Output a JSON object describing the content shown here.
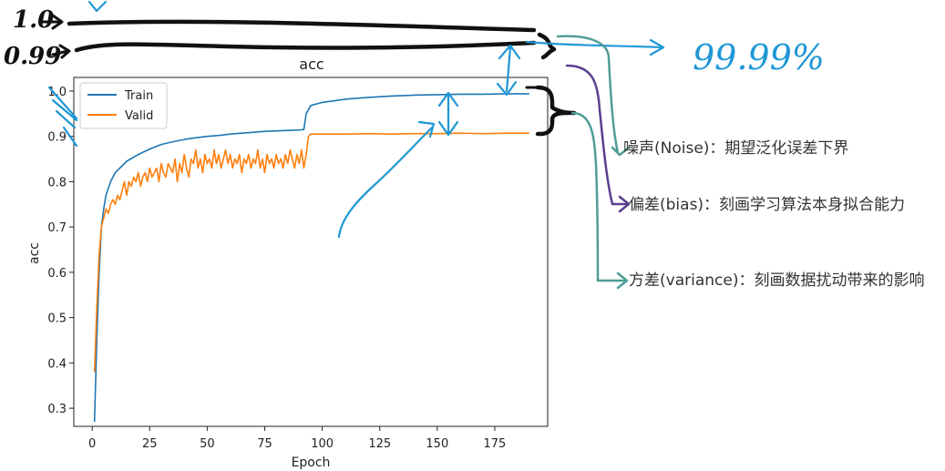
{
  "chart_data": {
    "type": "line",
    "title": "acc",
    "xlabel": "Epoch",
    "ylabel": "acc",
    "xlim": [
      -8,
      198
    ],
    "ylim": [
      0.26,
      1.03
    ],
    "xticks": [
      0,
      25,
      50,
      75,
      100,
      125,
      150,
      175
    ],
    "yticks": [
      0.3,
      0.4,
      0.5,
      0.6,
      0.7,
      0.8,
      0.9,
      1.0
    ],
    "xtick_labels": [
      "0",
      "25",
      "50",
      "75",
      "100",
      "125",
      "150",
      "175"
    ],
    "ytick_labels": [
      "0.3",
      "0.4",
      "0.5",
      "0.6",
      "0.7",
      "0.8",
      "0.9",
      "1.0"
    ],
    "legend": "top-left",
    "grid": false,
    "series": [
      {
        "name": "Train",
        "color": "#1f77b4",
        "x": [
          1,
          2,
          3,
          4,
          5,
          6,
          8,
          10,
          12,
          15,
          20,
          25,
          30,
          35,
          40,
          45,
          50,
          55,
          60,
          65,
          70,
          75,
          80,
          85,
          90,
          92,
          93,
          95,
          100,
          110,
          120,
          130,
          140,
          150,
          160,
          170,
          180,
          190
        ],
        "values": [
          0.27,
          0.45,
          0.6,
          0.7,
          0.74,
          0.77,
          0.8,
          0.82,
          0.83,
          0.845,
          0.86,
          0.872,
          0.882,
          0.888,
          0.893,
          0.897,
          0.9,
          0.902,
          0.905,
          0.907,
          0.909,
          0.911,
          0.912,
          0.913,
          0.914,
          0.915,
          0.95,
          0.968,
          0.975,
          0.982,
          0.986,
          0.989,
          0.991,
          0.992,
          0.993,
          0.993,
          0.994,
          0.994
        ]
      },
      {
        "name": "Valid",
        "color": "#ff7f0e",
        "x": [
          1,
          2,
          3,
          4,
          5,
          6,
          7,
          8,
          9,
          10,
          11,
          12,
          13,
          14,
          15,
          16,
          17,
          18,
          19,
          20,
          21,
          22,
          23,
          24,
          25,
          26,
          27,
          28,
          29,
          30,
          31,
          32,
          33,
          34,
          35,
          36,
          37,
          38,
          39,
          40,
          41,
          42,
          43,
          44,
          45,
          46,
          47,
          48,
          49,
          50,
          51,
          52,
          53,
          54,
          55,
          56,
          57,
          58,
          59,
          60,
          61,
          62,
          63,
          64,
          65,
          66,
          67,
          68,
          69,
          70,
          71,
          72,
          73,
          74,
          75,
          76,
          77,
          78,
          79,
          80,
          81,
          82,
          83,
          84,
          85,
          86,
          87,
          88,
          89,
          90,
          91,
          92,
          93,
          94,
          95,
          100,
          110,
          120,
          130,
          140,
          150,
          160,
          170,
          180,
          190
        ],
        "values": [
          0.38,
          0.52,
          0.64,
          0.7,
          0.72,
          0.74,
          0.73,
          0.75,
          0.76,
          0.75,
          0.77,
          0.76,
          0.78,
          0.8,
          0.77,
          0.8,
          0.79,
          0.81,
          0.8,
          0.82,
          0.79,
          0.81,
          0.82,
          0.8,
          0.83,
          0.81,
          0.82,
          0.83,
          0.8,
          0.84,
          0.82,
          0.81,
          0.84,
          0.83,
          0.82,
          0.85,
          0.8,
          0.84,
          0.82,
          0.86,
          0.83,
          0.81,
          0.85,
          0.84,
          0.87,
          0.83,
          0.85,
          0.82,
          0.86,
          0.84,
          0.85,
          0.83,
          0.87,
          0.84,
          0.86,
          0.83,
          0.85,
          0.87,
          0.84,
          0.86,
          0.83,
          0.85,
          0.84,
          0.86,
          0.82,
          0.85,
          0.84,
          0.86,
          0.83,
          0.85,
          0.84,
          0.87,
          0.83,
          0.85,
          0.82,
          0.86,
          0.84,
          0.85,
          0.83,
          0.86,
          0.84,
          0.85,
          0.83,
          0.86,
          0.84,
          0.87,
          0.85,
          0.83,
          0.86,
          0.84,
          0.87,
          0.83,
          0.86,
          0.9,
          0.905,
          0.905,
          0.905,
          0.906,
          0.905,
          0.906,
          0.906,
          0.907,
          0.906,
          0.907,
          0.907
        ]
      }
    ]
  },
  "annotations": {
    "level_high": "1.0",
    "level_low": "0.99",
    "percent": "99.99%",
    "noise": "噪声(Noise)：期望泛化误差下界",
    "bias": "偏差(bias)：刻画学习算法本身拟合能力",
    "variance": "方差(variance)：刻画数据扰动带来的影响"
  }
}
